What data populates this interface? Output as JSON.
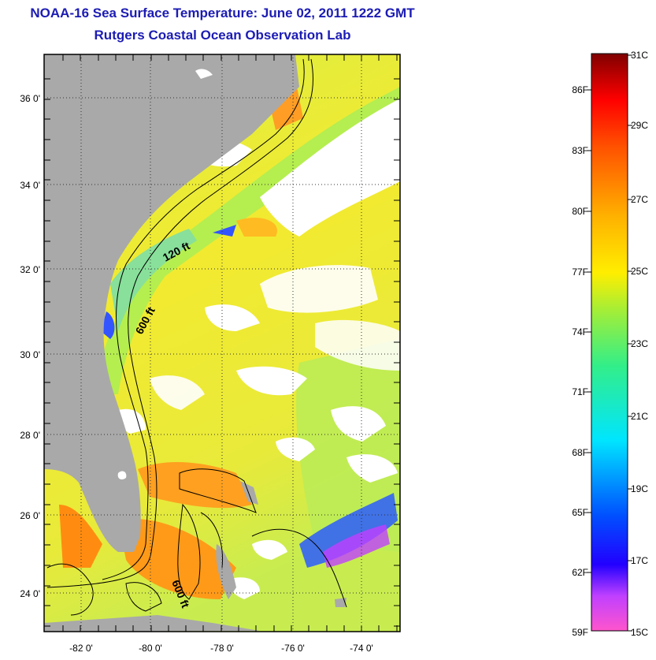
{
  "title": "NOAA-16 Sea Surface Temperature:  June 02, 2011 1222 GMT",
  "subtitle": "Rutgers Coastal Ocean Observation Lab",
  "map": {
    "lat_ticks": [
      "24 0'",
      "26 0'",
      "28 0'",
      "30 0'",
      "32 0'",
      "34 0'",
      "36 0'"
    ],
    "lon_ticks": [
      "-82 0'",
      "-80 0'",
      "-78 0'",
      "-76 0'",
      "-74 0'"
    ],
    "contour_labels": [
      "120 ft",
      "600 ft",
      "600 ft"
    ],
    "colors": {
      "land": "#a9a9a9",
      "cloud": "#ffffff",
      "sst_gradient": [
        "#ff55cc",
        "#9b2cff",
        "#0000ff",
        "#0088ff",
        "#00e5ff",
        "#33ee88",
        "#b8ee33",
        "#ffee00",
        "#ffb000",
        "#ff7000",
        "#ff0000",
        "#800000"
      ]
    }
  },
  "colorbar": {
    "celsius": [
      "31C",
      "29C",
      "27C",
      "25C",
      "23C",
      "21C",
      "19C",
      "17C",
      "15C"
    ],
    "fahrenheit": [
      "86F",
      "83F",
      "80F",
      "77F",
      "74F",
      "71F",
      "68F",
      "65F",
      "62F",
      "59F"
    ],
    "range_c": [
      15,
      31
    ],
    "range_f": [
      59,
      88
    ]
  }
}
